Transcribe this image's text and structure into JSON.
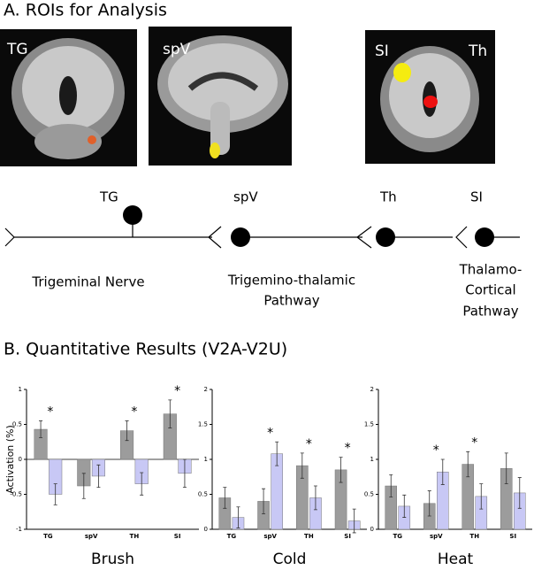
{
  "section_a": {
    "title": "A. ROIs for Analysis",
    "images": [
      {
        "labels": [
          "TG"
        ]
      },
      {
        "labels": [
          "spV"
        ]
      },
      {
        "labels": [
          "SI",
          "Th"
        ]
      }
    ]
  },
  "diagram": {
    "nodes": [
      "TG",
      "spV",
      "Th",
      "SI"
    ],
    "pathways": [
      [
        "Trigeminal Nerve"
      ],
      [
        "Trigemino-thalamic",
        "Pathway"
      ],
      [
        "Thalamo-",
        "Cortical",
        "Pathway"
      ]
    ]
  },
  "section_b": {
    "title": "B. Quantitative Results (V2A-V2U)"
  },
  "chart_data": [
    {
      "type": "bar",
      "ylabel": "Activation (%)",
      "xlabel": "Brush",
      "categories": [
        "TG",
        "spV",
        "TH",
        "SI"
      ],
      "series": [
        {
          "color": "#9c9c9c",
          "values": [
            0.43,
            -0.38,
            0.41,
            0.65
          ],
          "errors": [
            0.12,
            0.18,
            0.14,
            0.2
          ]
        },
        {
          "color": "#c8c8f5",
          "values": [
            -0.5,
            -0.24,
            -0.35,
            -0.2
          ],
          "errors": [
            0.15,
            0.16,
            0.16,
            0.2
          ]
        }
      ],
      "significance": [
        "*",
        null,
        "*",
        "*"
      ],
      "ylim": [
        -1,
        1
      ],
      "yticks": [
        -1,
        -0.5,
        0,
        0.5,
        1
      ]
    },
    {
      "type": "bar",
      "xlabel": "Cold",
      "categories": [
        "TG",
        "spV",
        "TH",
        "SI"
      ],
      "series": [
        {
          "color": "#9c9c9c",
          "values": [
            0.45,
            0.4,
            0.91,
            0.85
          ],
          "errors": [
            0.15,
            0.18,
            0.18,
            0.18
          ]
        },
        {
          "color": "#c8c8f5",
          "values": [
            0.17,
            1.08,
            0.45,
            0.12
          ],
          "errors": [
            0.15,
            0.17,
            0.17,
            0.17
          ]
        }
      ],
      "significance": [
        null,
        "*",
        "*",
        "*"
      ],
      "ylim": [
        0,
        2
      ],
      "yticks": [
        0,
        0.5,
        1,
        1.5,
        2
      ]
    },
    {
      "type": "bar",
      "xlabel": "Heat",
      "categories": [
        "TG",
        "spV",
        "TH",
        "SI"
      ],
      "series": [
        {
          "color": "#9c9c9c",
          "values": [
            0.62,
            0.37,
            0.93,
            0.87
          ],
          "errors": [
            0.16,
            0.18,
            0.18,
            0.22
          ]
        },
        {
          "color": "#c8c8f5",
          "values": [
            0.33,
            0.82,
            0.47,
            0.52
          ],
          "errors": [
            0.16,
            0.18,
            0.18,
            0.22
          ]
        }
      ],
      "significance": [
        null,
        "*",
        "*",
        null
      ],
      "ylim": [
        0,
        2
      ],
      "yticks": [
        0,
        0.5,
        1,
        1.5,
        2
      ]
    }
  ]
}
